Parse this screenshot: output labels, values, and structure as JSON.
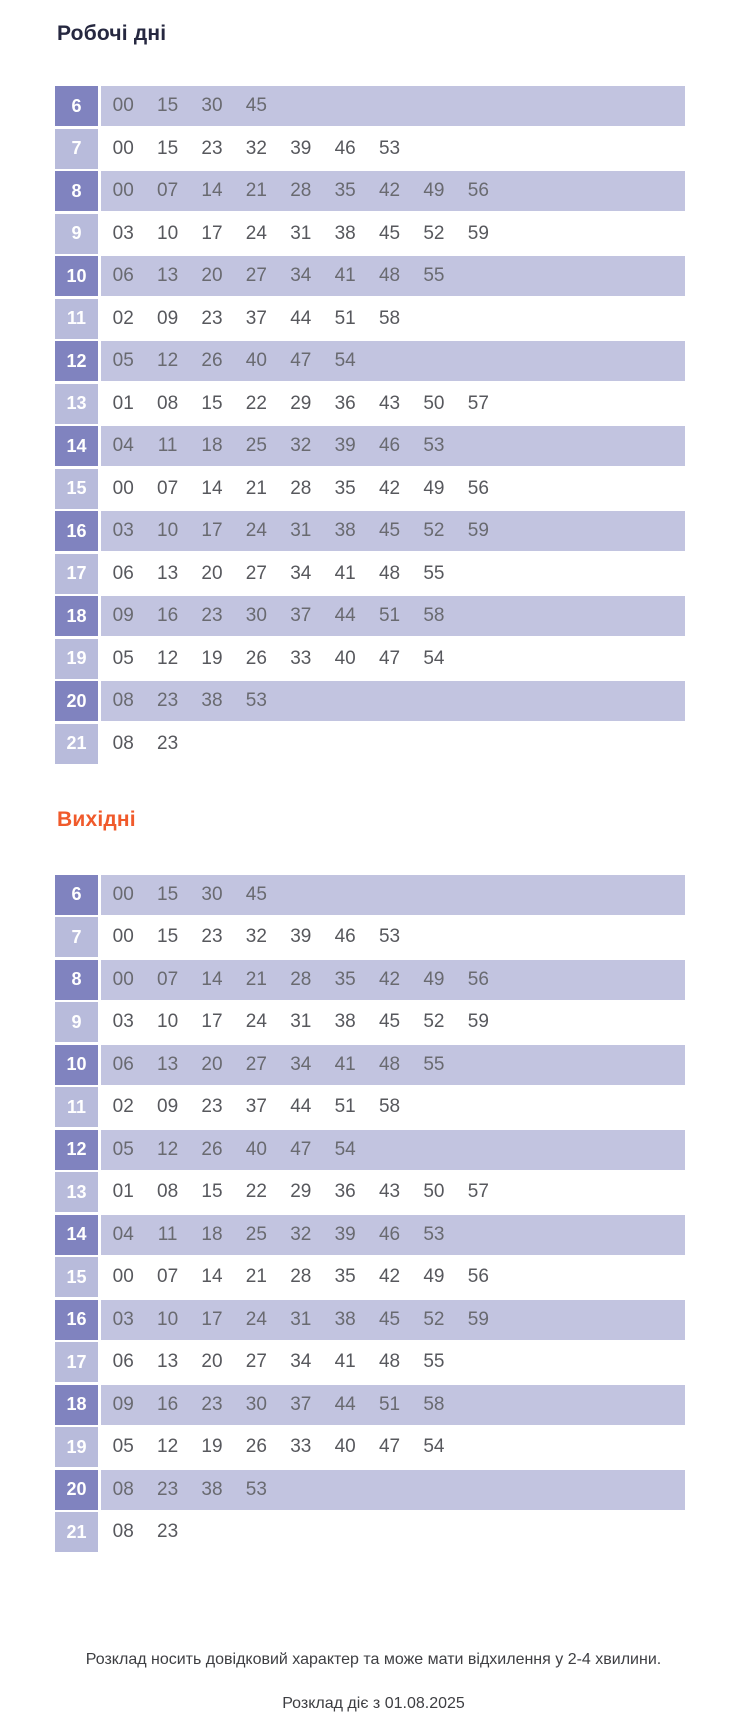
{
  "colors": {
    "workdays_title": "#262840",
    "weekend_title": "#f05a2b",
    "hour_cell_dark": "#8083bf",
    "hour_cell_light": "#b8bbdb",
    "row_shaded_bg": "#c2c4e0",
    "row_white_bg": "#ffffff"
  },
  "sections": [
    {
      "id": "workdays",
      "title": "Робочі дні",
      "rows": [
        {
          "hour": "6",
          "minutes": [
            "00",
            "15",
            "30",
            "45"
          ]
        },
        {
          "hour": "7",
          "minutes": [
            "00",
            "15",
            "23",
            "32",
            "39",
            "46",
            "53"
          ]
        },
        {
          "hour": "8",
          "minutes": [
            "00",
            "07",
            "14",
            "21",
            "28",
            "35",
            "42",
            "49",
            "56"
          ]
        },
        {
          "hour": "9",
          "minutes": [
            "03",
            "10",
            "17",
            "24",
            "31",
            "38",
            "45",
            "52",
            "59"
          ]
        },
        {
          "hour": "10",
          "minutes": [
            "06",
            "13",
            "20",
            "27",
            "34",
            "41",
            "48",
            "55"
          ]
        },
        {
          "hour": "11",
          "minutes": [
            "02",
            "09",
            "23",
            "37",
            "44",
            "51",
            "58"
          ]
        },
        {
          "hour": "12",
          "minutes": [
            "05",
            "12",
            "26",
            "40",
            "47",
            "54"
          ]
        },
        {
          "hour": "13",
          "minutes": [
            "01",
            "08",
            "15",
            "22",
            "29",
            "36",
            "43",
            "50",
            "57"
          ]
        },
        {
          "hour": "14",
          "minutes": [
            "04",
            "11",
            "18",
            "25",
            "32",
            "39",
            "46",
            "53"
          ]
        },
        {
          "hour": "15",
          "minutes": [
            "00",
            "07",
            "14",
            "21",
            "28",
            "35",
            "42",
            "49",
            "56"
          ]
        },
        {
          "hour": "16",
          "minutes": [
            "03",
            "10",
            "17",
            "24",
            "31",
            "38",
            "45",
            "52",
            "59"
          ]
        },
        {
          "hour": "17",
          "minutes": [
            "06",
            "13",
            "20",
            "27",
            "34",
            "41",
            "48",
            "55"
          ]
        },
        {
          "hour": "18",
          "minutes": [
            "09",
            "16",
            "23",
            "30",
            "37",
            "44",
            "51",
            "58"
          ]
        },
        {
          "hour": "19",
          "minutes": [
            "05",
            "12",
            "19",
            "26",
            "33",
            "40",
            "47",
            "54"
          ]
        },
        {
          "hour": "20",
          "minutes": [
            "08",
            "23",
            "38",
            "53"
          ]
        },
        {
          "hour": "21",
          "minutes": [
            "08",
            "23"
          ]
        }
      ]
    },
    {
      "id": "weekend",
      "title": "Вихідні",
      "rows": [
        {
          "hour": "6",
          "minutes": [
            "00",
            "15",
            "30",
            "45"
          ]
        },
        {
          "hour": "7",
          "minutes": [
            "00",
            "15",
            "23",
            "32",
            "39",
            "46",
            "53"
          ]
        },
        {
          "hour": "8",
          "minutes": [
            "00",
            "07",
            "14",
            "21",
            "28",
            "35",
            "42",
            "49",
            "56"
          ]
        },
        {
          "hour": "9",
          "minutes": [
            "03",
            "10",
            "17",
            "24",
            "31",
            "38",
            "45",
            "52",
            "59"
          ]
        },
        {
          "hour": "10",
          "minutes": [
            "06",
            "13",
            "20",
            "27",
            "34",
            "41",
            "48",
            "55"
          ]
        },
        {
          "hour": "11",
          "minutes": [
            "02",
            "09",
            "23",
            "37",
            "44",
            "51",
            "58"
          ]
        },
        {
          "hour": "12",
          "minutes": [
            "05",
            "12",
            "26",
            "40",
            "47",
            "54"
          ]
        },
        {
          "hour": "13",
          "minutes": [
            "01",
            "08",
            "15",
            "22",
            "29",
            "36",
            "43",
            "50",
            "57"
          ]
        },
        {
          "hour": "14",
          "minutes": [
            "04",
            "11",
            "18",
            "25",
            "32",
            "39",
            "46",
            "53"
          ]
        },
        {
          "hour": "15",
          "minutes": [
            "00",
            "07",
            "14",
            "21",
            "28",
            "35",
            "42",
            "49",
            "56"
          ]
        },
        {
          "hour": "16",
          "minutes": [
            "03",
            "10",
            "17",
            "24",
            "31",
            "38",
            "45",
            "52",
            "59"
          ]
        },
        {
          "hour": "17",
          "minutes": [
            "06",
            "13",
            "20",
            "27",
            "34",
            "41",
            "48",
            "55"
          ]
        },
        {
          "hour": "18",
          "minutes": [
            "09",
            "16",
            "23",
            "30",
            "37",
            "44",
            "51",
            "58"
          ]
        },
        {
          "hour": "19",
          "minutes": [
            "05",
            "12",
            "19",
            "26",
            "33",
            "40",
            "47",
            "54"
          ]
        },
        {
          "hour": "20",
          "minutes": [
            "08",
            "23",
            "38",
            "53"
          ]
        },
        {
          "hour": "21",
          "minutes": [
            "08",
            "23"
          ]
        }
      ]
    }
  ],
  "footer": {
    "note": "Розклад носить довідковий характер та може мати відхилення у 2-4 хвилини.",
    "valid_from": "Розклад діє з 01.08.2025"
  }
}
